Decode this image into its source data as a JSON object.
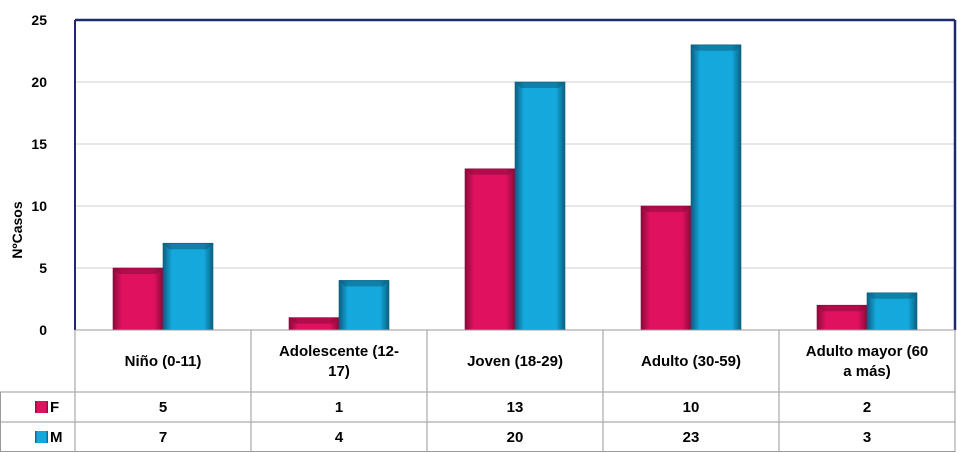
{
  "chart_data": {
    "type": "bar",
    "title": "",
    "ylabel": "NºCasos",
    "xlabel": "",
    "ylim": [
      0,
      25
    ],
    "yticks": [
      0,
      5,
      10,
      15,
      20,
      25
    ],
    "grid": true,
    "legend": "data-table-left",
    "categories": [
      "Niño (0-11)",
      "Adolescente (12-17)",
      "Joven (18-29)",
      "Adulto (30-59)",
      "Adulto mayor (60 a más)"
    ],
    "category_lines": [
      [
        "Niño (0-11)"
      ],
      [
        "Adolescente (12-",
        "17)"
      ],
      [
        "Joven (18-29)"
      ],
      [
        "Adulto (30-59)"
      ],
      [
        "Adulto mayor (60",
        "a más)"
      ]
    ],
    "series": [
      {
        "name": "F",
        "values": [
          5,
          1,
          13,
          10,
          2
        ],
        "color": "#e0115f",
        "color_dark": "#8a0a3a"
      },
      {
        "name": "M",
        "values": [
          7,
          4,
          20,
          23,
          3
        ],
        "color": "#14a8dc",
        "color_dark": "#0b5f80"
      }
    ],
    "colors": {
      "axis": "#1f2a6e",
      "grid": "#d0d0d0",
      "table": "#9a9a9a"
    }
  }
}
